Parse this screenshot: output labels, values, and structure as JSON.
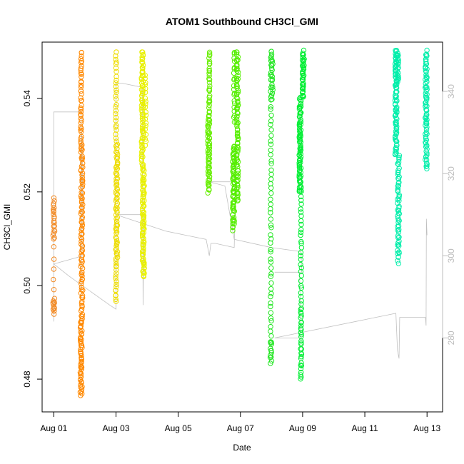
{
  "chart_data": {
    "type": "scatter",
    "title": "ATOM1 Southbound CH3Cl_GMI",
    "xlabel": "Date",
    "ylabel": "CH3Cl_GMI",
    "x_ticks": [
      "Aug 01",
      "Aug 03",
      "Aug 05",
      "Aug 07",
      "Aug 09",
      "Aug 11",
      "Aug 13"
    ],
    "xlim": [
      "2016-07-31T15:00",
      "2016-08-13T12:00"
    ],
    "ylim": [
      0.473,
      0.552
    ],
    "y_ticks": [
      0.48,
      0.5,
      0.52,
      0.54
    ],
    "y2lim": [
      262,
      352
    ],
    "y2_ticks": [
      280,
      300,
      320,
      340
    ],
    "grid": false,
    "marker": "open-circle",
    "series": [
      {
        "date": "2016-08-01",
        "color": "#f28c28",
        "clusters": [
          {
            "day": 1.0,
            "ymin": 0.494,
            "ymax": 0.497,
            "dense": true,
            "n": 14
          },
          {
            "day": 1.0,
            "ymin": 0.51,
            "ymax": 0.5185,
            "dense": true,
            "n": 22
          },
          {
            "day": 1.0,
            "ymin": 0.499,
            "ymax": 0.508,
            "dense": false,
            "n": 5
          }
        ]
      },
      {
        "date": "2016-08-01",
        "color": "#ff8800",
        "clusters": [
          {
            "day": 1.88,
            "ymin": 0.4765,
            "ymax": 0.492,
            "dense": true,
            "n": 50
          },
          {
            "day": 1.9,
            "ymin": 0.492,
            "ymax": 0.53,
            "dense": true,
            "n": 90
          },
          {
            "day": 1.88,
            "ymin": 0.53,
            "ymax": 0.55,
            "dense": false,
            "n": 40
          }
        ]
      },
      {
        "date": "2016-08-03",
        "color": "#eedd00",
        "clusters": [
          {
            "day": 3.0,
            "ymin": 0.4965,
            "ymax": 0.506,
            "dense": false,
            "n": 18
          },
          {
            "day": 3.02,
            "ymin": 0.506,
            "ymax": 0.53,
            "dense": true,
            "n": 70
          },
          {
            "day": 3.0,
            "ymin": 0.53,
            "ymax": 0.55,
            "dense": false,
            "n": 28
          }
        ]
      },
      {
        "date": "2016-08-03",
        "color": "#e8f000",
        "clusters": [
          {
            "day": 3.88,
            "ymin": 0.502,
            "ymax": 0.525,
            "dense": true,
            "n": 90
          },
          {
            "day": 3.85,
            "ymin": 0.525,
            "ymax": 0.55,
            "dense": true,
            "n": 80
          },
          {
            "day": 3.95,
            "ymin": 0.53,
            "ymax": 0.545,
            "dense": false,
            "n": 20
          }
        ]
      },
      {
        "date": "2016-08-06",
        "color": "#66ee00",
        "clusters": [
          {
            "day": 5.98,
            "ymin": 0.52,
            "ymax": 0.536,
            "dense": true,
            "n": 60
          },
          {
            "day": 6.0,
            "ymin": 0.536,
            "ymax": 0.55,
            "dense": false,
            "n": 30
          }
        ]
      },
      {
        "date": "2016-08-07",
        "color": "#55ee00",
        "clusters": [
          {
            "day": 6.78,
            "ymin": 0.512,
            "ymax": 0.53,
            "dense": true,
            "n": 70
          },
          {
            "day": 6.9,
            "ymin": 0.518,
            "ymax": 0.55,
            "dense": true,
            "n": 90
          },
          {
            "day": 6.8,
            "ymin": 0.535,
            "ymax": 0.55,
            "dense": false,
            "n": 20
          }
        ]
      },
      {
        "date": "2016-08-08",
        "color": "#22e622",
        "clusters": [
          {
            "day": 7.98,
            "ymin": 0.4835,
            "ymax": 0.488,
            "dense": true,
            "n": 12
          },
          {
            "day": 7.98,
            "ymin": 0.488,
            "ymax": 0.55,
            "dense": false,
            "n": 60
          },
          {
            "day": 8.02,
            "ymin": 0.54,
            "ymax": 0.55,
            "dense": true,
            "n": 20
          }
        ]
      },
      {
        "date": "2016-08-09",
        "color": "#00ee33",
        "clusters": [
          {
            "day": 8.95,
            "ymin": 0.48,
            "ymax": 0.495,
            "dense": false,
            "n": 30
          },
          {
            "day": 8.95,
            "ymin": 0.495,
            "ymax": 0.52,
            "dense": false,
            "n": 30
          },
          {
            "day": 8.92,
            "ymin": 0.52,
            "ymax": 0.54,
            "dense": true,
            "n": 80
          },
          {
            "day": 9.02,
            "ymin": 0.54,
            "ymax": 0.55,
            "dense": true,
            "n": 40
          }
        ]
      },
      {
        "date": "2016-08-12",
        "color": "#00eeaa",
        "clusters": [
          {
            "day": 12.08,
            "ymin": 0.505,
            "ymax": 0.528,
            "dense": true,
            "n": 60
          },
          {
            "day": 12.0,
            "ymin": 0.528,
            "ymax": 0.55,
            "dense": true,
            "n": 80
          },
          {
            "day": 12.05,
            "ymin": 0.543,
            "ymax": 0.55,
            "dense": true,
            "n": 20
          }
        ]
      },
      {
        "date": "2016-08-13",
        "color": "#00eeaa",
        "clusters": [
          {
            "day": 12.97,
            "ymin": 0.525,
            "ymax": 0.535,
            "dense": true,
            "n": 30
          },
          {
            "day": 12.97,
            "ymin": 0.535,
            "ymax": 0.55,
            "dense": true,
            "n": 50
          }
        ]
      }
    ],
    "secondary_series": {
      "name_shown": false,
      "color": "#c0c0c0",
      "points": [
        [
          1.0,
          284
        ],
        [
          1.0,
          335
        ],
        [
          1.3,
          335
        ],
        [
          1.88,
          335
        ],
        [
          1.88,
          290
        ],
        [
          1.9,
          330
        ],
        [
          1.95,
          300
        ],
        [
          1.0,
          298
        ],
        [
          1.5,
          295
        ],
        [
          2.8,
          288
        ],
        [
          3.0,
          287
        ],
        [
          3.0,
          342
        ],
        [
          3.2,
          342
        ],
        [
          3.85,
          341
        ],
        [
          3.87,
          288
        ],
        [
          3.9,
          310
        ],
        [
          3.0,
          310
        ],
        [
          4.6,
          306
        ],
        [
          5.9,
          304
        ],
        [
          6.0,
          300
        ],
        [
          6.05,
          303
        ],
        [
          6.2,
          303
        ],
        [
          6.8,
          302
        ],
        [
          6.85,
          318
        ],
        [
          6.0,
          318
        ],
        [
          6.5,
          317
        ],
        [
          6.8,
          304
        ],
        [
          8.0,
          302
        ],
        [
          8.95,
          301
        ],
        [
          8.97,
          296
        ],
        [
          8.1,
          296
        ],
        [
          8.9,
          296
        ],
        [
          8.95,
          280
        ],
        [
          8.1,
          280
        ],
        [
          12.0,
          286
        ],
        [
          12.05,
          277
        ],
        [
          12.1,
          275
        ],
        [
          12.12,
          285
        ],
        [
          12.95,
          285
        ],
        [
          12.97,
          283
        ],
        [
          12.98,
          309
        ],
        [
          13.0,
          305
        ]
      ]
    }
  }
}
